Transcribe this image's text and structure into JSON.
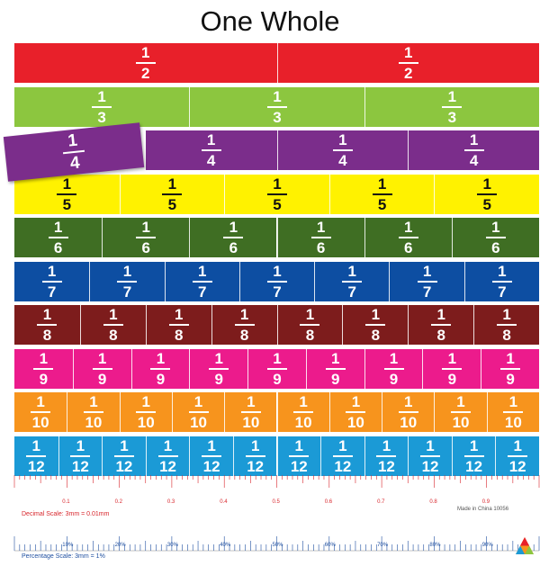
{
  "title": "One Whole",
  "rows": [
    {
      "denominator": "2",
      "numerator": "1",
      "pieces": 2,
      "color": "#e8202a",
      "text_color": "#ffffff"
    },
    {
      "denominator": "3",
      "numerator": "1",
      "pieces": 3,
      "color": "#8cc63f",
      "text_color": "#ffffff"
    },
    {
      "denominator": "4",
      "numerator": "1",
      "pieces": 4,
      "color": "#7b2d8b",
      "text_color": "#ffffff"
    },
    {
      "denominator": "5",
      "numerator": "1",
      "pieces": 5,
      "color": "#fff200",
      "text_color": "#111111"
    },
    {
      "denominator": "6",
      "numerator": "1",
      "pieces": 6,
      "color": "#3f6e23",
      "text_color": "#ffffff"
    },
    {
      "denominator": "7",
      "numerator": "1",
      "pieces": 7,
      "color": "#0d4ea2",
      "text_color": "#ffffff"
    },
    {
      "denominator": "8",
      "numerator": "1",
      "pieces": 8,
      "color": "#7d1c1c",
      "text_color": "#ffffff"
    },
    {
      "denominator": "9",
      "numerator": "1",
      "pieces": 9,
      "color": "#ec1b8c",
      "text_color": "#ffffff"
    },
    {
      "denominator": "10",
      "numerator": "1",
      "pieces": 10,
      "color": "#f7941d",
      "text_color": "#ffffff"
    },
    {
      "denominator": "12",
      "numerator": "1",
      "pieces": 12,
      "color": "#1b9ad6",
      "text_color": "#ffffff"
    }
  ],
  "loose_piece": {
    "numerator": "1",
    "denominator": "4",
    "color": "#7b2d8b"
  },
  "decimal_scale": {
    "label": "Decimal Scale: 3mm = 0.01mm",
    "ticks": [
      "0.1",
      "0.2",
      "0.3",
      "0.4",
      "0.5",
      "0.6",
      "0.7",
      "0.8",
      "0.9"
    ]
  },
  "percentage_scale": {
    "label": "Percentage Scale: 3mm = 1%",
    "ticks": [
      "10%",
      "20%",
      "30%",
      "40%",
      "50%",
      "60%",
      "70%",
      "80%",
      "90%"
    ]
  },
  "made_in": "Made in China 10056",
  "colors": {
    "scale_red": "#d8262c",
    "scale_blue": "#1f4fa0"
  }
}
